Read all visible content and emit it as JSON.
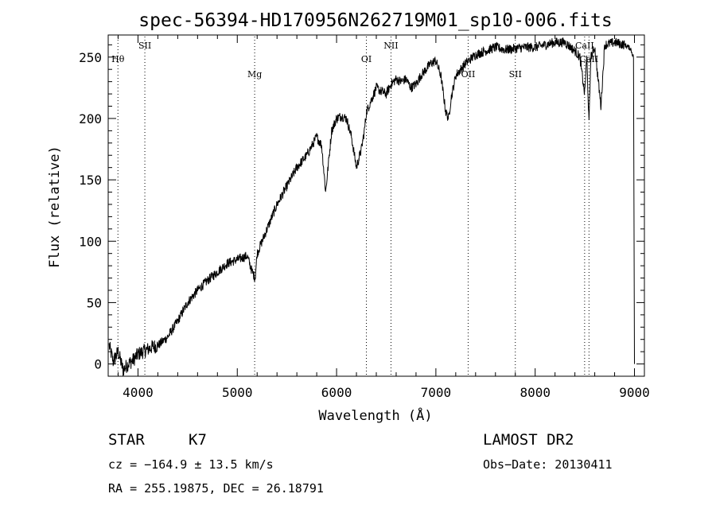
{
  "chart_data": {
    "type": "line",
    "title": "spec-56394-HD170956N262719M01_sp10-006.fits",
    "xlabel": "Wavelength (Å)",
    "ylabel": "Flux (relative)",
    "xlim": [
      3700,
      9100
    ],
    "ylim": [
      -10,
      268
    ],
    "xticks": [
      4000,
      5000,
      6000,
      7000,
      8000,
      9000
    ],
    "yticks": [
      0,
      50,
      100,
      150,
      200,
      250
    ],
    "xtick_labels": [
      "4000",
      "5000",
      "6000",
      "7000",
      "8000",
      "9000"
    ],
    "ytick_labels": [
      "0",
      "50",
      "100",
      "150",
      "200",
      "250"
    ],
    "grid": false,
    "spectral_lines": [
      {
        "label": "Hθ",
        "wavelength": 3798,
        "level": "low"
      },
      {
        "label": "SII",
        "wavelength": 4069,
        "level": "high"
      },
      {
        "label": "Mg",
        "wavelength": 5175,
        "level": "lower"
      },
      {
        "label": "OI",
        "wavelength": 6300,
        "level": "low"
      },
      {
        "label": "NII",
        "wavelength": 6548,
        "level": "high"
      },
      {
        "label": "OII",
        "wavelength": 7325,
        "level": "lower"
      },
      {
        "label": "SII",
        "wavelength": 7800,
        "level": "lower"
      },
      {
        "label": "CaII",
        "wavelength": 8498,
        "level": "high"
      },
      {
        "label": "CaII",
        "wavelength": 8542,
        "level": "low"
      }
    ],
    "series": [
      {
        "x": [
          3710,
          3750,
          3800,
          3850,
          3900,
          3950,
          4000,
          4050,
          4100,
          4150,
          4200,
          4300,
          4400,
          4500,
          4600,
          4700,
          4800,
          4900,
          5000,
          5100,
          5150,
          5180,
          5200,
          5300,
          5400,
          5500,
          5600,
          5700,
          5800,
          5850,
          5890,
          5950,
          6000,
          6050,
          6100,
          6150,
          6200,
          6250,
          6280,
          6300,
          6350,
          6400,
          6450,
          6500,
          6550,
          6600,
          6650,
          6700,
          6750,
          6800,
          6850,
          6900,
          6950,
          7000,
          7050,
          7100,
          7130,
          7150,
          7200,
          7300,
          7400,
          7500,
          7600,
          7700,
          7800,
          7900,
          8000,
          8100,
          8200,
          8300,
          8400,
          8450,
          8498,
          8520,
          8542,
          8560,
          8600,
          8662,
          8700,
          8800,
          8900,
          8960,
          8990,
          9000
        ],
        "values": [
          15,
          2,
          10,
          -5,
          0,
          3,
          8,
          10,
          12,
          14,
          15,
          22,
          35,
          50,
          60,
          68,
          75,
          82,
          85,
          88,
          75,
          70,
          90,
          110,
          130,
          145,
          160,
          170,
          185,
          178,
          140,
          190,
          200,
          202,
          200,
          185,
          160,
          175,
          190,
          205,
          215,
          225,
          222,
          220,
          228,
          232,
          230,
          232,
          225,
          228,
          235,
          240,
          245,
          247,
          235,
          205,
          200,
          215,
          235,
          245,
          252,
          255,
          258,
          256,
          257,
          258,
          258,
          260,
          262,
          262,
          255,
          250,
          220,
          250,
          195,
          250,
          258,
          210,
          260,
          262,
          260,
          257,
          250,
          0
        ]
      }
    ]
  },
  "info": {
    "class": "STAR",
    "subclass": "K7",
    "survey": "LAMOST DR2",
    "cz": "cz = −164.9 ± 13.5 km/s",
    "obs_date": "Obs−Date: 20130411",
    "coords": "RA = 255.19875, DEC =  26.18791"
  }
}
